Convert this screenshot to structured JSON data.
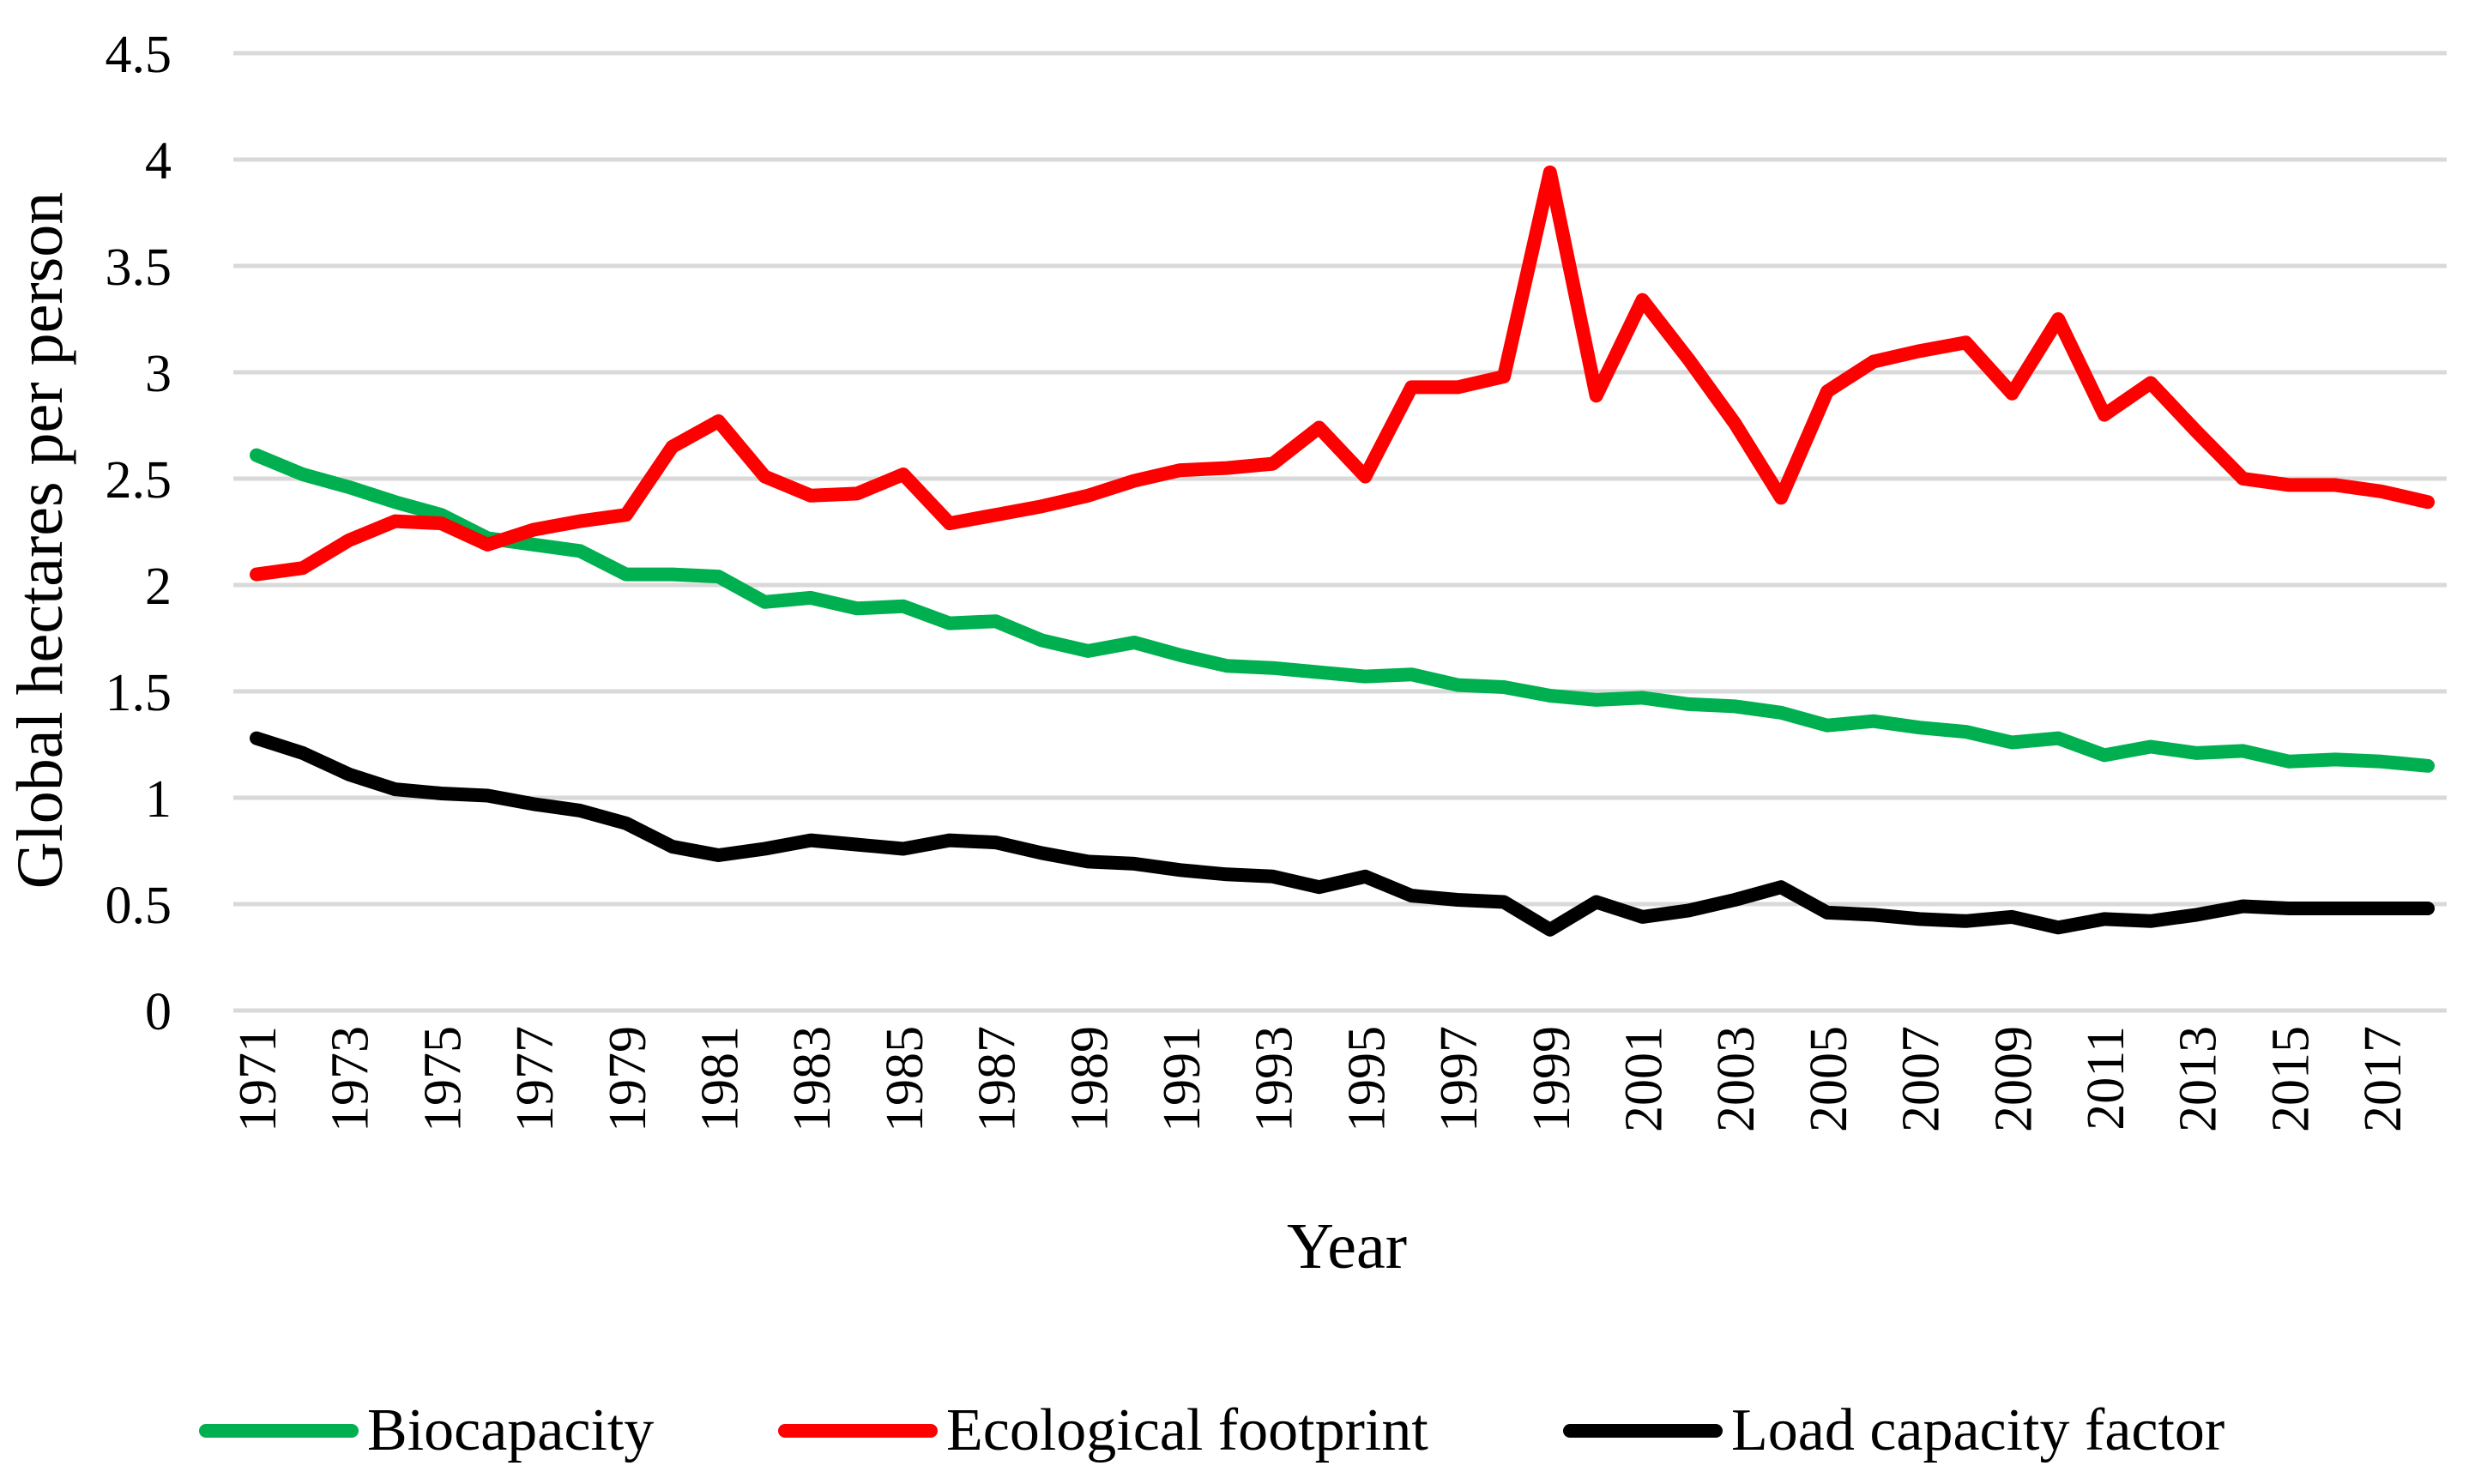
{
  "chart_data": {
    "type": "line",
    "title": "",
    "xlabel": "Year",
    "ylabel": "Global hectares per person",
    "ylim": [
      0,
      4.5
    ],
    "yticks": [
      "0",
      "0.5",
      "1",
      "1.5",
      "2",
      "2.5",
      "3",
      "3.5",
      "4",
      "4.5"
    ],
    "ytick_values": [
      0,
      0.5,
      1,
      1.5,
      2,
      2.5,
      3,
      3.5,
      4,
      4.5
    ],
    "grid": true,
    "legend_position": "bottom",
    "x": [
      1971,
      1972,
      1973,
      1974,
      1975,
      1976,
      1977,
      1978,
      1979,
      1980,
      1981,
      1982,
      1983,
      1984,
      1985,
      1986,
      1987,
      1988,
      1989,
      1990,
      1991,
      1992,
      1993,
      1994,
      1995,
      1996,
      1997,
      1998,
      1999,
      2000,
      2001,
      2002,
      2003,
      2004,
      2005,
      2006,
      2007,
      2008,
      2009,
      2010,
      2011,
      2012,
      2013,
      2014,
      2015,
      2016,
      2017,
      2018
    ],
    "xtick_labels": [
      "1971",
      "1973",
      "1975",
      "1977",
      "1979",
      "1981",
      "1983",
      "1985",
      "1987",
      "1989",
      "1991",
      "1993",
      "1995",
      "1997",
      "1999",
      "2001",
      "2003",
      "2005",
      "2007",
      "2009",
      "2011",
      "2013",
      "2015",
      "2017"
    ],
    "series": [
      {
        "name": "Biocapacity",
        "color": "#00b050",
        "values": [
          2.61,
          2.52,
          2.46,
          2.39,
          2.33,
          2.22,
          2.19,
          2.16,
          2.05,
          2.05,
          2.04,
          1.92,
          1.94,
          1.89,
          1.9,
          1.82,
          1.83,
          1.74,
          1.69,
          1.73,
          1.67,
          1.62,
          1.61,
          1.59,
          1.57,
          1.58,
          1.53,
          1.52,
          1.48,
          1.46,
          1.47,
          1.44,
          1.43,
          1.4,
          1.34,
          1.36,
          1.33,
          1.31,
          1.26,
          1.28,
          1.2,
          1.24,
          1.21,
          1.22,
          1.17,
          1.18,
          1.17,
          1.15
        ]
      },
      {
        "name": "Ecological footprint",
        "color": "#ff0000",
        "values": [
          2.05,
          2.08,
          2.21,
          2.3,
          2.29,
          2.19,
          2.26,
          2.3,
          2.33,
          2.65,
          2.77,
          2.51,
          2.42,
          2.43,
          2.52,
          2.29,
          2.33,
          2.37,
          2.42,
          2.49,
          2.54,
          2.55,
          2.57,
          2.74,
          2.51,
          2.93,
          2.93,
          2.98,
          3.94,
          2.89,
          3.34,
          3.06,
          2.76,
          2.41,
          2.91,
          3.05,
          3.1,
          3.14,
          2.9,
          3.25,
          2.8,
          2.95,
          2.72,
          2.5,
          2.47,
          2.47,
          2.44,
          2.39
        ]
      },
      {
        "name": "Load capacity factor",
        "color": "#000000",
        "values": [
          1.28,
          1.21,
          1.11,
          1.04,
          1.02,
          1.01,
          0.97,
          0.94,
          0.88,
          0.77,
          0.73,
          0.76,
          0.8,
          0.78,
          0.76,
          0.8,
          0.79,
          0.74,
          0.7,
          0.69,
          0.66,
          0.64,
          0.63,
          0.58,
          0.63,
          0.54,
          0.52,
          0.51,
          0.38,
          0.51,
          0.44,
          0.47,
          0.52,
          0.58,
          0.46,
          0.45,
          0.43,
          0.42,
          0.44,
          0.39,
          0.43,
          0.42,
          0.45,
          0.49,
          0.48,
          0.48,
          0.48,
          0.48
        ]
      }
    ]
  }
}
